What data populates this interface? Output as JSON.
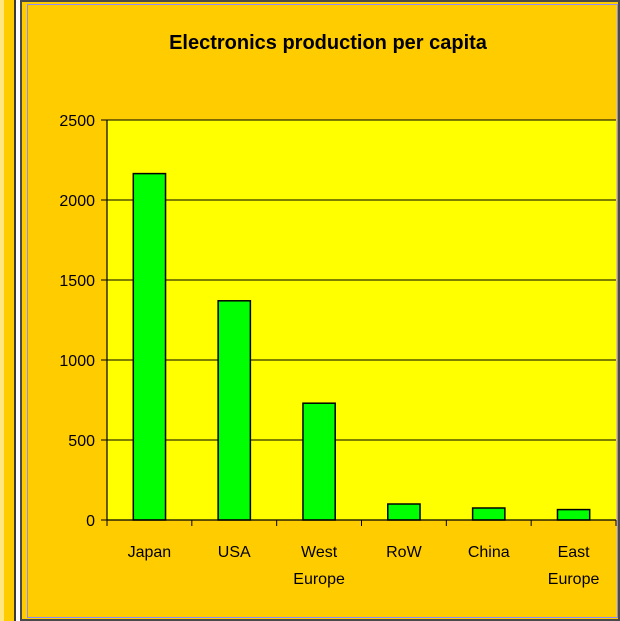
{
  "chart_data": {
    "type": "bar",
    "title": "Electronics production per capita",
    "categories": [
      [
        "Japan"
      ],
      [
        "USA"
      ],
      [
        "West",
        "Europe"
      ],
      [
        "RoW"
      ],
      [
        "China"
      ],
      [
        "East",
        "Europe"
      ]
    ],
    "values": [
      2165,
      1370,
      730,
      100,
      75,
      65
    ],
    "ylim": [
      0,
      2500
    ],
    "yticks": [
      0,
      500,
      1000,
      1500,
      2000,
      2500
    ],
    "grid": true,
    "legend": "none",
    "colors": {
      "background": "#ffcc00",
      "plot_area": "#ffff00",
      "bar_fill": "#00ff00",
      "bar_stroke": "#000000",
      "gridline": "#000000"
    }
  }
}
